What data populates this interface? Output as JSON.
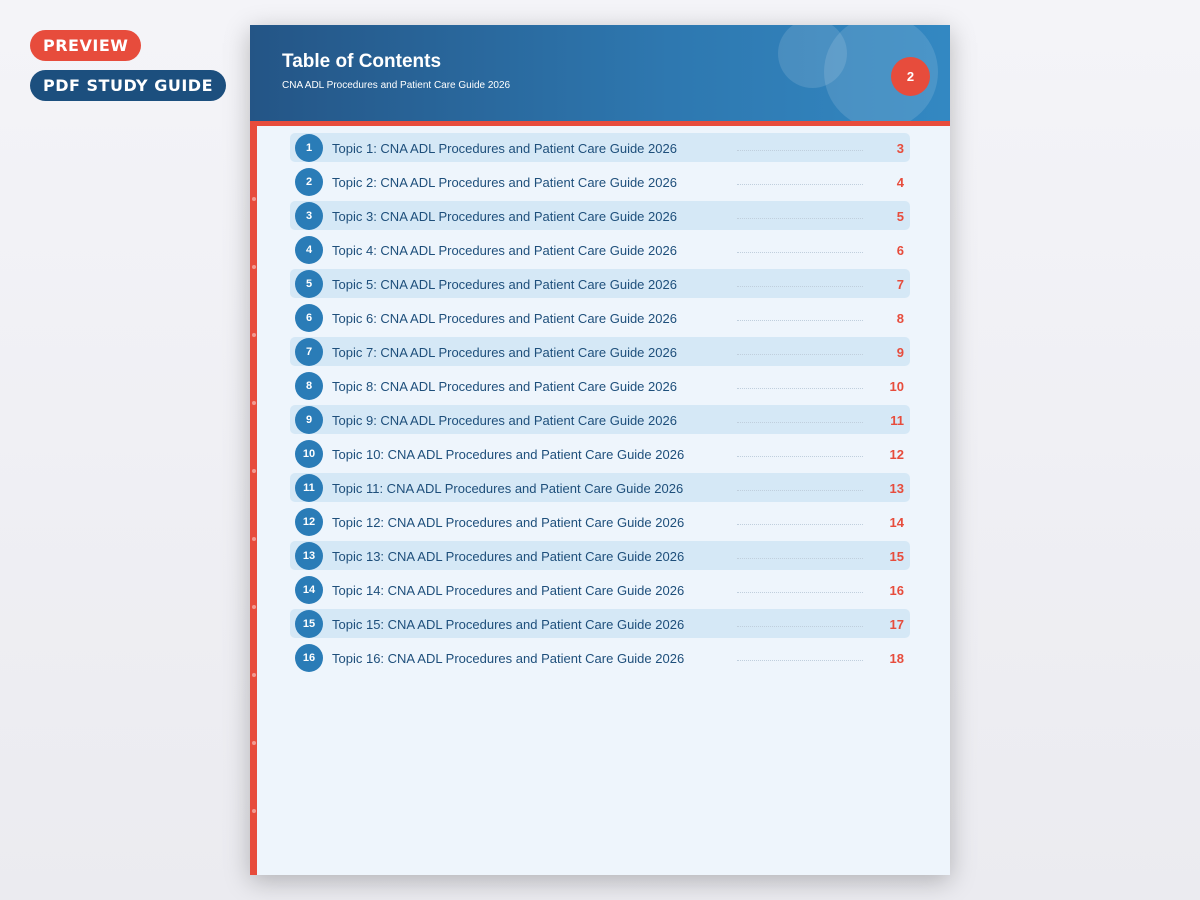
{
  "badges": {
    "preview": "PREVIEW",
    "guide": "PDF STUDY GUIDE"
  },
  "header": {
    "title": "Table of Contents",
    "subtitle": "CNA ADL Procedures and Patient Care Guide 2026",
    "page_number": "2"
  },
  "colors": {
    "accent": "#e74c3c",
    "primary": "#2a7cb7",
    "dark": "#1c4f7e"
  },
  "toc": [
    {
      "n": "1",
      "label": "Topic 1: CNA ADL Procedures and Patient Care Guide 2026",
      "page": "3"
    },
    {
      "n": "2",
      "label": "Topic 2: CNA ADL Procedures and Patient Care Guide 2026",
      "page": "4"
    },
    {
      "n": "3",
      "label": "Topic 3: CNA ADL Procedures and Patient Care Guide 2026",
      "page": "5"
    },
    {
      "n": "4",
      "label": "Topic 4: CNA ADL Procedures and Patient Care Guide 2026",
      "page": "6"
    },
    {
      "n": "5",
      "label": "Topic 5: CNA ADL Procedures and Patient Care Guide 2026",
      "page": "7"
    },
    {
      "n": "6",
      "label": "Topic 6: CNA ADL Procedures and Patient Care Guide 2026",
      "page": "8"
    },
    {
      "n": "7",
      "label": "Topic 7: CNA ADL Procedures and Patient Care Guide 2026",
      "page": "9"
    },
    {
      "n": "8",
      "label": "Topic 8: CNA ADL Procedures and Patient Care Guide 2026",
      "page": "10"
    },
    {
      "n": "9",
      "label": "Topic 9: CNA ADL Procedures and Patient Care Guide 2026",
      "page": "11"
    },
    {
      "n": "10",
      "label": "Topic 10: CNA ADL Procedures and Patient Care Guide 2026",
      "page": "12"
    },
    {
      "n": "11",
      "label": "Topic 11: CNA ADL Procedures and Patient Care Guide 2026",
      "page": "13"
    },
    {
      "n": "12",
      "label": "Topic 12: CNA ADL Procedures and Patient Care Guide 2026",
      "page": "14"
    },
    {
      "n": "13",
      "label": "Topic 13: CNA ADL Procedures and Patient Care Guide 2026",
      "page": "15"
    },
    {
      "n": "14",
      "label": "Topic 14: CNA ADL Procedures and Patient Care Guide 2026",
      "page": "16"
    },
    {
      "n": "15",
      "label": "Topic 15: CNA ADL Procedures and Patient Care Guide 2026",
      "page": "17"
    },
    {
      "n": "16",
      "label": "Topic 16: CNA ADL Procedures and Patient Care Guide 2026",
      "page": "18"
    }
  ]
}
